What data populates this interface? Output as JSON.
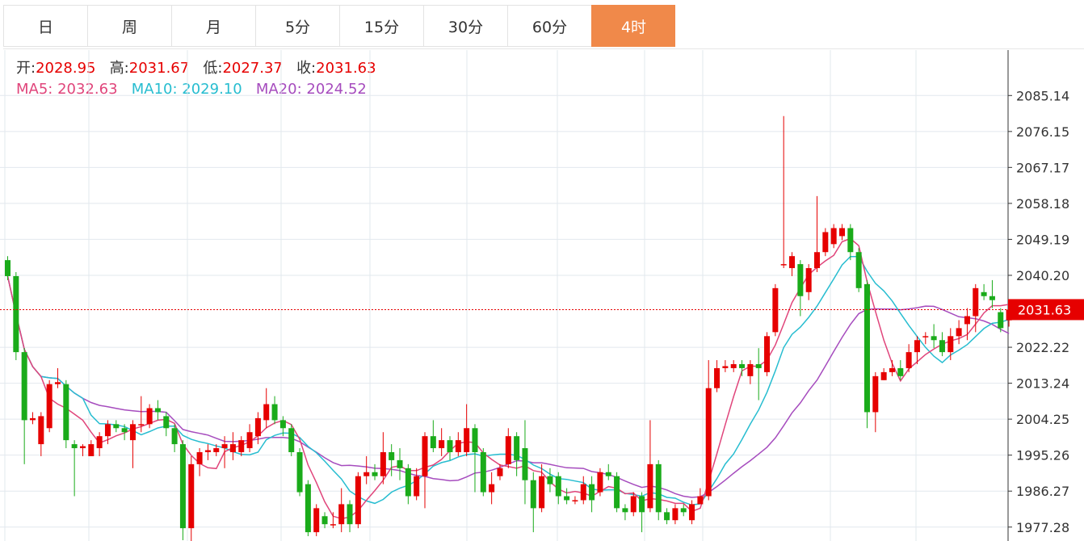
{
  "tabs": [
    {
      "label": "日",
      "active": false
    },
    {
      "label": "周",
      "active": false
    },
    {
      "label": "月",
      "active": false
    },
    {
      "label": "5分",
      "active": false
    },
    {
      "label": "15分",
      "active": false
    },
    {
      "label": "30分",
      "active": false
    },
    {
      "label": "60分",
      "active": false
    },
    {
      "label": "4时",
      "active": true
    }
  ],
  "info": {
    "open_label": "开:",
    "open": "2028.95",
    "high_label": "高:",
    "high": "2031.67",
    "low_label": "低:",
    "low": "2027.37",
    "close_label": "收:",
    "close": "2031.63",
    "ma5_label": "MA5:",
    "ma5": "2032.63",
    "ma10_label": "MA10:",
    "ma10": "2029.10",
    "ma20_label": "MA20:",
    "ma20": "2024.52"
  },
  "colors": {
    "up": "#e60000",
    "down": "#1aab1a",
    "ma5": "#e0457b",
    "ma10": "#27bdd0",
    "ma20": "#a64cbe",
    "active_tab": "#f0894a",
    "grid": "#e2e8ee"
  },
  "chart_data": {
    "type": "candlestick",
    "ylim": [
      1973.8,
      2096.5
    ],
    "y_ticks": [
      2085.14,
      2076.15,
      2067.17,
      2058.18,
      2049.19,
      2040.2,
      2022.22,
      2013.24,
      2004.25,
      1995.26,
      1986.27,
      1977.28
    ],
    "last_price": "2031.63",
    "last_price_value": 2031.63,
    "candles": [
      [
        2044.0,
        2040.0,
        2045.0,
        2039.0
      ],
      [
        2040.0,
        2021.0,
        2041.0,
        2019.0
      ],
      [
        2021.0,
        2004.0,
        2022.0,
        1993.0
      ],
      [
        2004.0,
        2004.5,
        2006.0,
        2003.0
      ],
      [
        1998.0,
        2005.0,
        2006.0,
        1995.0
      ],
      [
        2002.0,
        2013.0,
        2014.0,
        2001.0
      ],
      [
        2013.0,
        2013.5,
        2017.0,
        2012.0
      ],
      [
        2013.0,
        1999.0,
        2014.0,
        1997.0
      ],
      [
        1998.0,
        1997.0,
        1999.0,
        1985.0
      ],
      [
        1997.0,
        1997.5,
        1998.0,
        1995.0
      ],
      [
        1995.0,
        1998.0,
        1999.0,
        1996.0
      ],
      [
        1997.0,
        2000.0,
        2001.0,
        1995.0
      ],
      [
        2000.0,
        2003.0,
        2004.0,
        1998.0
      ],
      [
        2003.0,
        2002.0,
        2004.0,
        2001.0
      ],
      [
        2002.0,
        2001.0,
        2003.0,
        1999.0
      ],
      [
        1999.0,
        2003.0,
        2004.0,
        1992.0
      ],
      [
        2003.0,
        2003.0,
        2010.0,
        2001.0
      ],
      [
        2003.0,
        2007.0,
        2008.0,
        2002.0
      ],
      [
        2007.0,
        2006.0,
        2009.0,
        2004.0
      ],
      [
        2005.0,
        2002.0,
        2006.0,
        2000.0
      ],
      [
        2002.0,
        1998.0,
        2003.0,
        1996.0
      ],
      [
        1998.0,
        1977.0,
        1999.0,
        1974.0
      ],
      [
        1977.0,
        1993.0,
        1995.0,
        1973.8
      ],
      [
        1993.0,
        1996.0,
        1997.0,
        1990.0
      ],
      [
        1996.0,
        1996.5,
        1998.0,
        1994.0
      ],
      [
        1996.0,
        1997.0,
        1998.0,
        1995.0
      ],
      [
        1997.0,
        1998.0,
        2000.0,
        1992.0
      ],
      [
        1996.0,
        1998.0,
        2001.0,
        1994.0
      ],
      [
        1996.0,
        1999.0,
        2000.0,
        1995.0
      ],
      [
        1997.0,
        2001.0,
        2003.0,
        1996.0
      ],
      [
        2000.0,
        2004.5,
        2006.0,
        1998.0
      ],
      [
        2004.0,
        2008.0,
        2012.0,
        2002.0
      ],
      [
        2008.0,
        2004.0,
        2010.0,
        2003.0
      ],
      [
        2004.0,
        2002.0,
        2005.0,
        2000.0
      ],
      [
        2002.0,
        1996.0,
        2003.0,
        1995.0
      ],
      [
        1996.0,
        1986.0,
        1997.0,
        1985.0
      ],
      [
        1988.0,
        1976.0,
        1989.0,
        1975.0
      ],
      [
        1976.0,
        1982.0,
        1983.0,
        1975.0
      ],
      [
        1980.0,
        1978.0,
        1981.0,
        1977.0
      ],
      [
        1978.0,
        1978.0,
        1981.0,
        1977.0
      ],
      [
        1978.0,
        1983.0,
        1987.0,
        1976.0
      ],
      [
        1983.0,
        1978.0,
        1984.0,
        1976.0
      ],
      [
        1978.0,
        1990.0,
        1991.0,
        1977.0
      ],
      [
        1990.0,
        1991.0,
        1995.0,
        1988.0
      ],
      [
        1991.0,
        1990.0,
        1993.0,
        1989.0
      ],
      [
        1990.0,
        1996.0,
        2001.0,
        1988.0
      ],
      [
        1996.0,
        1994.0,
        1998.0,
        1990.0
      ],
      [
        1994.0,
        1992.0,
        1997.0,
        1989.0
      ],
      [
        1992.0,
        1985.0,
        1993.0,
        1983.0
      ],
      [
        1985.0,
        1990.0,
        1992.0,
        1984.0
      ],
      [
        1990.0,
        2000.0,
        2001.0,
        1982.0
      ],
      [
        2000.0,
        1997.0,
        2004.0,
        1996.0
      ],
      [
        1997.0,
        1999.0,
        2002.0,
        1995.0
      ],
      [
        1999.0,
        1996.0,
        2000.0,
        1994.0
      ],
      [
        1996.0,
        1999.0,
        2001.0,
        1995.0
      ],
      [
        1996.0,
        2002.0,
        2008.0,
        1995.0
      ],
      [
        2002.0,
        1996.0,
        2003.0,
        1986.0
      ],
      [
        1996.0,
        1986.0,
        1997.0,
        1985.0
      ],
      [
        1986.0,
        1988.0,
        1991.0,
        1983.0
      ],
      [
        1990.0,
        1992.0,
        1993.0,
        1989.0
      ],
      [
        1993.0,
        2000.0,
        2002.0,
        1992.0
      ],
      [
        2000.0,
        1994.0,
        2001.0,
        1990.0
      ],
      [
        1997.0,
        1989.0,
        2004.0,
        1983.0
      ],
      [
        1989.0,
        1982.0,
        1991.0,
        1976.0
      ],
      [
        1982.0,
        1990.0,
        1993.0,
        1981.0
      ],
      [
        1990.0,
        1988.0,
        1992.0,
        1986.0
      ],
      [
        1990.0,
        1985.0,
        1991.0,
        1983.0
      ],
      [
        1985.0,
        1984.0,
        1987.0,
        1983.0
      ],
      [
        1984.0,
        1984.0,
        1985.0,
        1983.0
      ],
      [
        1984.0,
        1988.0,
        1990.0,
        1983.0
      ],
      [
        1988.0,
        1984.0,
        1990.0,
        1981.0
      ],
      [
        1986.0,
        1991.0,
        1992.0,
        1985.0
      ],
      [
        1991.0,
        1990.0,
        1993.0,
        1989.0
      ],
      [
        1990.0,
        1982.0,
        1991.0,
        1981.0
      ],
      [
        1982.0,
        1981.0,
        1983.0,
        1979.0
      ],
      [
        1981.0,
        1985.0,
        1986.0,
        1980.0
      ],
      [
        1985.0,
        1981.0,
        1986.0,
        1976.0
      ],
      [
        1982.0,
        1993.0,
        2004.0,
        1981.0
      ],
      [
        1993.0,
        1981.0,
        1994.0,
        1979.0
      ],
      [
        1981.0,
        1979.0,
        1982.0,
        1978.0
      ],
      [
        1979.0,
        1982.0,
        1983.0,
        1978.0
      ],
      [
        1982.0,
        1981.0,
        1983.0,
        1980.0
      ],
      [
        1979.0,
        1983.0,
        1984.0,
        1978.0
      ],
      [
        1983.0,
        1985.0,
        1987.0,
        1984.0
      ],
      [
        1985.0,
        2012.0,
        2019.0,
        1984.0
      ],
      [
        2012.0,
        2017.0,
        2019.0,
        2011.0
      ],
      [
        2017.0,
        2017.5,
        2019.0,
        2016.0
      ],
      [
        2017.0,
        2018.0,
        2019.0,
        2016.0
      ],
      [
        2018.0,
        2017.0,
        2019.0,
        2015.0
      ],
      [
        2015.0,
        2018.0,
        2019.0,
        2013.0
      ],
      [
        2018.0,
        2017.0,
        2022.0,
        2009.0
      ],
      [
        2016.0,
        2025.0,
        2026.0,
        2015.0
      ],
      [
        2026.0,
        2037.0,
        2038.0,
        2025.0
      ],
      [
        2043.0,
        2043.0,
        2080.0,
        2042.0
      ],
      [
        2042.0,
        2045.0,
        2046.0,
        2040.0
      ],
      [
        2043.0,
        2035.0,
        2044.0,
        2030.0
      ],
      [
        2036.0,
        2042.0,
        2043.0,
        2034.0
      ],
      [
        2042.0,
        2046.0,
        2060.0,
        2041.0
      ],
      [
        2046.0,
        2051.0,
        2052.0,
        2045.0
      ],
      [
        2048.0,
        2052.0,
        2053.0,
        2047.0
      ],
      [
        2050.0,
        2052.0,
        2053.0,
        2049.0
      ],
      [
        2052.0,
        2046.0,
        2053.0,
        2044.0
      ],
      [
        2046.0,
        2037.0,
        2047.0,
        2036.0
      ],
      [
        2038.0,
        2006.0,
        2039.0,
        2002.0
      ],
      [
        2006.0,
        2015.0,
        2016.0,
        2001.0
      ],
      [
        2014.0,
        2016.0,
        2017.0,
        2014.0
      ],
      [
        2016.0,
        2017.0,
        2019.0,
        2015.0
      ],
      [
        2017.0,
        2015.0,
        2019.0,
        2014.0
      ],
      [
        2017.0,
        2021.0,
        2023.0,
        2016.0
      ],
      [
        2021.0,
        2024.0,
        2025.0,
        2018.0
      ],
      [
        2025.0,
        2025.0,
        2026.0,
        2023.0
      ],
      [
        2025.0,
        2024.0,
        2028.0,
        2022.0
      ],
      [
        2024.0,
        2021.0,
        2026.0,
        2020.0
      ],
      [
        2021.0,
        2025.0,
        2027.0,
        2019.0
      ],
      [
        2025.0,
        2027.0,
        2029.0,
        2023.0
      ],
      [
        2028.0,
        2030.0,
        2032.0,
        2024.0
      ],
      [
        2030.0,
        2037.0,
        2038.0,
        2026.0
      ],
      [
        2036.0,
        2035.0,
        2038.0,
        2034.0
      ],
      [
        2035.0,
        2034.0,
        2039.0,
        2032.0
      ],
      [
        2031.0,
        2027.0,
        2032.0,
        2026.0
      ],
      [
        2028.95,
        2031.63,
        2031.67,
        2027.37
      ]
    ]
  }
}
